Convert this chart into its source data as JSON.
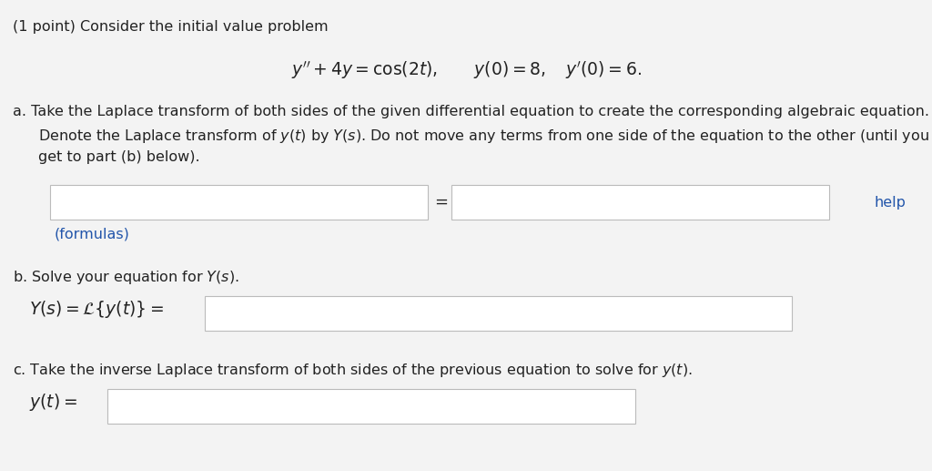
{
  "bg_color": "#f3f3f3",
  "white": "#ffffff",
  "blue_link": "#2255aa",
  "text_color": "#222222",
  "title_line": "(1 point) Consider the initial value problem",
  "ode_line": "$y'' + 4y = \\cos(2t), \\qquad y(0) = 8, \\quad y'(0) = 6.$",
  "part_a_intro": "a. Take the Laplace transform of both sides of the given differential equation to create the corresponding algebraic equation.",
  "part_a_line2": "    Denote the Laplace transform of $y(t)$ by $Y(s)$. Do not move any terms from one side of the equation to the other (until you",
  "part_a_line3": "    get to part (b) below).",
  "formulas_link": "(formulas)",
  "part_b_intro": "b. Solve your equation for $Y(s)$.",
  "part_b_label": "$Y(s) = \\mathcal{L}\\{y(t)\\} =$",
  "part_c_intro": "c. Take the inverse Laplace transform of both sides of the previous equation to solve for $y(t)$.",
  "part_c_label": "$y(t) =$",
  "help_text": "help",
  "figsize": [
    10.24,
    5.17
  ],
  "dpi": 100
}
